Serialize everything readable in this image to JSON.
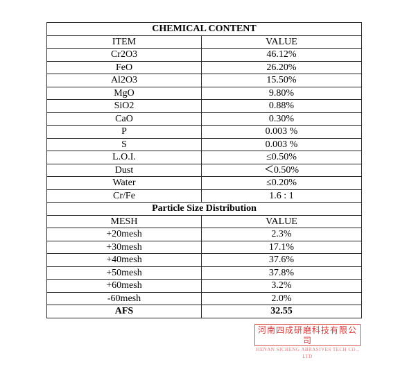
{
  "chemical": {
    "title": "CHEMICAL CONTENT",
    "col_item": "ITEM",
    "col_value": "VALUE",
    "rows": [
      [
        "Cr2O3",
        "46.12%"
      ],
      [
        "FeO",
        "26.20%"
      ],
      [
        "Al2O3",
        "15.50%"
      ],
      [
        "MgO",
        "9.80%"
      ],
      [
        "SiO2",
        "0.88%"
      ],
      [
        "CaO",
        "0.30%"
      ],
      [
        "P",
        "0.003 %"
      ],
      [
        "S",
        "0.003 %"
      ],
      [
        "L.O.I.",
        "≤0.50%"
      ],
      [
        "Dust",
        "＜0.50%"
      ],
      [
        "Water",
        "≤0.20%"
      ],
      [
        "Cr/Fe",
        "1.6 : 1"
      ]
    ]
  },
  "particle": {
    "title": "Particle Size Distribution",
    "col_item": "MESH",
    "col_value": "VALUE",
    "rows": [
      [
        "+20mesh",
        "2.3%"
      ],
      [
        "+30mesh",
        "17.1%"
      ],
      [
        "+40mesh",
        "37.6%"
      ],
      [
        "+50mesh",
        "37.8%"
      ],
      [
        "+60mesh",
        "3.2%"
      ],
      [
        "-60mesh",
        "2.0%"
      ]
    ],
    "afs_label": "AFS",
    "afs_value": "32.55"
  },
  "stamp": {
    "cn": "河南四成研磨科技有限公司",
    "en": "HENAN SICHENG ABRASIVES TECH CO., LTD",
    "color": "#d03a3a"
  }
}
